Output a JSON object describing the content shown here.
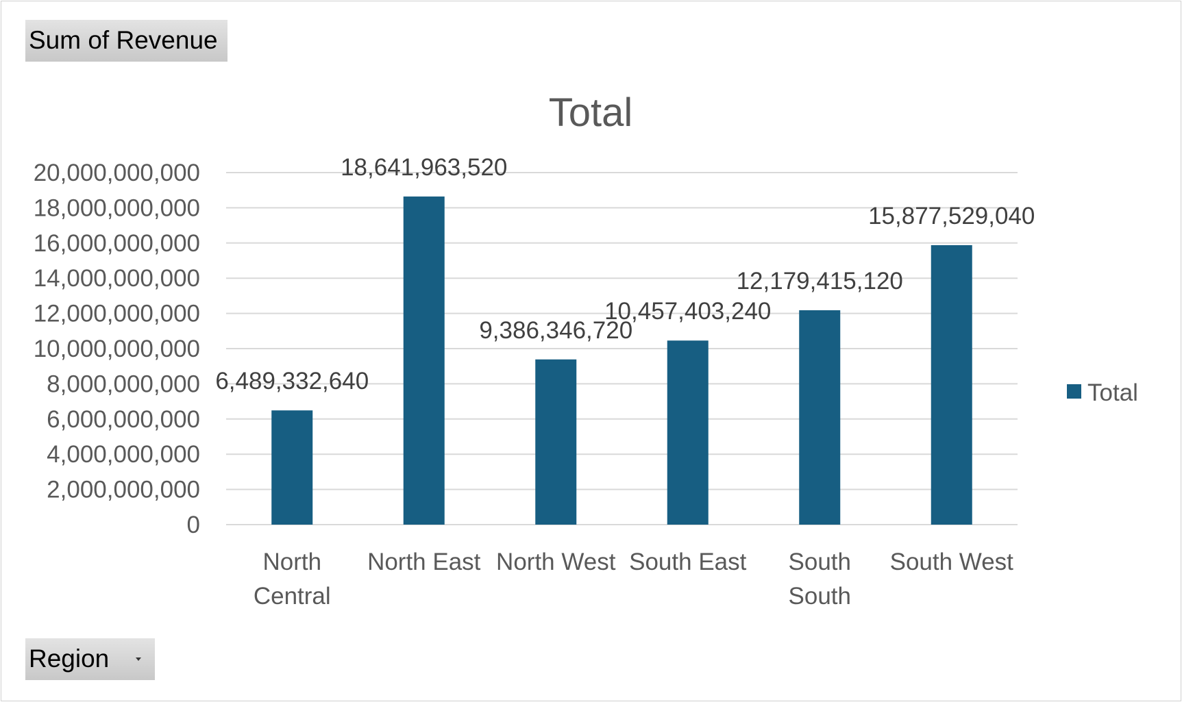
{
  "pivot": {
    "value_field": "Sum of Revenue",
    "axis_field": "Region"
  },
  "colors": {
    "bar": "#175e82",
    "grid": "#d9d9d9",
    "text": "#595959"
  },
  "chart_data": {
    "type": "bar",
    "title": "Total",
    "xlabel": "",
    "ylabel": "",
    "categories": [
      [
        "North",
        "Central"
      ],
      [
        "North East"
      ],
      [
        "North West"
      ],
      [
        "South East"
      ],
      [
        "South",
        "South"
      ],
      [
        "South West"
      ]
    ],
    "series": [
      {
        "name": "Total",
        "values": [
          6489332640,
          18641963520,
          9386346720,
          10457403240,
          12179415120,
          15877529040
        ]
      }
    ],
    "data_labels": [
      "6,489,332,640",
      "18,641,963,520",
      "9,386,346,720",
      "10,457,403,240",
      "12,179,415,120",
      "15,877,529,040"
    ],
    "y_ticks": [
      "0",
      "2,000,000,000",
      "4,000,000,000",
      "6,000,000,000",
      "8,000,000,000",
      "10,000,000,000",
      "12,000,000,000",
      "14,000,000,000",
      "16,000,000,000",
      "18,000,000,000",
      "20,000,000,000"
    ],
    "ylim": [
      0,
      20000000000
    ],
    "grid": true,
    "legend": "right"
  }
}
